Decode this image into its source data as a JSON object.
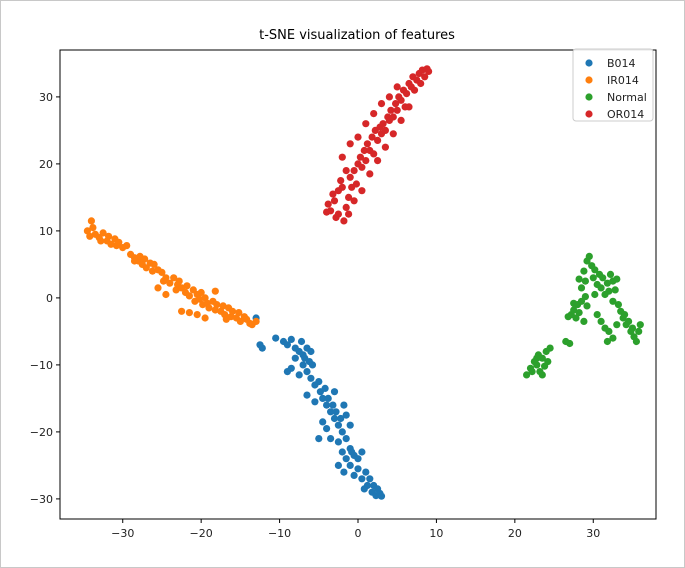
{
  "chart_data": {
    "type": "scatter",
    "title": "t-SNE visualization of features",
    "xlabel": "",
    "ylabel": "",
    "xlim": [
      -38,
      38
    ],
    "ylim": [
      -33,
      37
    ],
    "xticks": [
      -30,
      -20,
      -10,
      0,
      10,
      20,
      30
    ],
    "yticks": [
      -30,
      -20,
      -10,
      0,
      10,
      20,
      30
    ],
    "grid": false,
    "legend_position": "top-right",
    "series": [
      {
        "name": "B014",
        "color": "#1f77b4",
        "points": [
          [
            -13,
            -3
          ],
          [
            -12.5,
            -7
          ],
          [
            -12.2,
            -7.5
          ],
          [
            -10.5,
            -6
          ],
          [
            -9.5,
            -6.5
          ],
          [
            -9,
            -7
          ],
          [
            -8.5,
            -6.2
          ],
          [
            -8,
            -7.5
          ],
          [
            -7.5,
            -8
          ],
          [
            -7.2,
            -6.5
          ],
          [
            -7,
            -8.5
          ],
          [
            -6.8,
            -9
          ],
          [
            -6.5,
            -7.5
          ],
          [
            -6.2,
            -9.5
          ],
          [
            -6,
            -8
          ],
          [
            -5.8,
            -10
          ],
          [
            -8.5,
            -10.5
          ],
          [
            -9,
            -11
          ],
          [
            -7.5,
            -11.5
          ],
          [
            -6.5,
            -11
          ],
          [
            -6,
            -12
          ],
          [
            -5.5,
            -13
          ],
          [
            -5,
            -12.5
          ],
          [
            -4.8,
            -14
          ],
          [
            -4.5,
            -15
          ],
          [
            -4.2,
            -13.5
          ],
          [
            -4,
            -16
          ],
          [
            -3.8,
            -15
          ],
          [
            -3.5,
            -17
          ],
          [
            -6.5,
            -14.5
          ],
          [
            -5.5,
            -15.5
          ],
          [
            -3.2,
            -16
          ],
          [
            -3,
            -18
          ],
          [
            -2.8,
            -17
          ],
          [
            -2.5,
            -19
          ],
          [
            -2.2,
            -18
          ],
          [
            -2,
            -20
          ],
          [
            -1.8,
            -16
          ],
          [
            -1.5,
            -17.5
          ],
          [
            -4.5,
            -18.5
          ],
          [
            -4,
            -19.5
          ],
          [
            -5,
            -21
          ],
          [
            -3.5,
            -21
          ],
          [
            -2.5,
            -21.5
          ],
          [
            -1.5,
            -21
          ],
          [
            -1,
            -19
          ],
          [
            -2,
            -23
          ],
          [
            -1.5,
            -24
          ],
          [
            -1,
            -22.5
          ],
          [
            -0.5,
            -23.5
          ],
          [
            0,
            -24
          ],
          [
            0.5,
            -23
          ],
          [
            -2.5,
            -25
          ],
          [
            -1.8,
            -26
          ],
          [
            -1,
            -25
          ],
          [
            -0.5,
            -26.5
          ],
          [
            0,
            -25.5
          ],
          [
            0.5,
            -27
          ],
          [
            1,
            -26
          ],
          [
            1.2,
            -28
          ],
          [
            1.5,
            -27
          ],
          [
            1.8,
            -29
          ],
          [
            2,
            -28
          ],
          [
            2.3,
            -29.5
          ],
          [
            2.5,
            -28.5
          ],
          [
            2.8,
            -29.2
          ],
          [
            3,
            -29.6
          ],
          [
            0.8,
            -28.5
          ],
          [
            -0.8,
            -23
          ],
          [
            -3,
            -14
          ],
          [
            -8,
            -9
          ],
          [
            -7,
            -10
          ]
        ]
      },
      {
        "name": "IR014",
        "color": "#ff7f0e",
        "points": [
          [
            -34,
            11.5
          ],
          [
            -34.5,
            10
          ],
          [
            -34.2,
            9.2
          ],
          [
            -33.8,
            10.5
          ],
          [
            -33.5,
            9.5
          ],
          [
            -33,
            9
          ],
          [
            -32.8,
            8.5
          ],
          [
            -32.5,
            9.7
          ],
          [
            -32,
            8.5
          ],
          [
            -31.8,
            9.2
          ],
          [
            -31.5,
            8
          ],
          [
            -31,
            8.8
          ],
          [
            -30.8,
            7.8
          ],
          [
            -30.5,
            8.3
          ],
          [
            -30,
            7.5
          ],
          [
            -29.5,
            7.8
          ],
          [
            -29,
            6.5
          ],
          [
            -28.5,
            6
          ],
          [
            -28,
            5.5
          ],
          [
            -27.8,
            6.2
          ],
          [
            -27.5,
            5
          ],
          [
            -27.2,
            5.8
          ],
          [
            -27,
            4.5
          ],
          [
            -26.5,
            5.2
          ],
          [
            -26.2,
            4
          ],
          [
            -26,
            5
          ],
          [
            -25.5,
            4.2
          ],
          [
            -25,
            3.8
          ],
          [
            -24.8,
            2.5
          ],
          [
            -24.5,
            3
          ],
          [
            -24,
            2.2
          ],
          [
            -23.5,
            3
          ],
          [
            -23,
            2
          ],
          [
            -23.2,
            1.2
          ],
          [
            -22.8,
            2.5
          ],
          [
            -22.5,
            1.5
          ],
          [
            -22,
            0.8
          ],
          [
            -21.8,
            1.8
          ],
          [
            -21.5,
            0.3
          ],
          [
            -21,
            1.2
          ],
          [
            -20.8,
            -0.5
          ],
          [
            -20.5,
            0.5
          ],
          [
            -20.2,
            -0.2
          ],
          [
            -20,
            0.8
          ],
          [
            -19.8,
            -1
          ],
          [
            -19.5,
            0
          ],
          [
            -19.2,
            -0.8
          ],
          [
            -19,
            -1.5
          ],
          [
            -18.5,
            -0.5
          ],
          [
            -18.2,
            -1.8
          ],
          [
            -18,
            -1
          ],
          [
            -17.5,
            -2
          ],
          [
            -17.2,
            -1.2
          ],
          [
            -17,
            -2.5
          ],
          [
            -16.5,
            -1.5
          ],
          [
            -16.2,
            -2.8
          ],
          [
            -16,
            -2
          ],
          [
            -15.5,
            -3
          ],
          [
            -15.2,
            -2.2
          ],
          [
            -15,
            -3.5
          ],
          [
            -14.5,
            -2.8
          ],
          [
            -14.2,
            -3.2
          ],
          [
            -13.8,
            -3.8
          ],
          [
            -13.5,
            -4
          ],
          [
            -13,
            -3.5
          ],
          [
            -18.2,
            1
          ],
          [
            -21.5,
            -2.2
          ],
          [
            -22.5,
            -2
          ],
          [
            -20.5,
            -2.5
          ],
          [
            -24.5,
            0.5
          ],
          [
            -25.5,
            1.5
          ],
          [
            -28.5,
            5.5
          ],
          [
            -19.5,
            -3
          ],
          [
            -16.8,
            -3.2
          ]
        ]
      },
      {
        "name": "Normal",
        "color": "#2ca02c",
        "points": [
          [
            21.5,
            -11.5
          ],
          [
            22,
            -10.5
          ],
          [
            22.2,
            -11
          ],
          [
            22.5,
            -9.5
          ],
          [
            22.8,
            -10
          ],
          [
            23,
            -8.5
          ],
          [
            23.2,
            -11
          ],
          [
            23.5,
            -9
          ],
          [
            23.8,
            -10.2
          ],
          [
            24,
            -8
          ],
          [
            24.2,
            -9.5
          ],
          [
            24.5,
            -7.5
          ],
          [
            22.8,
            -9
          ],
          [
            23.5,
            -11.5
          ],
          [
            26.5,
            -6.5
          ],
          [
            27,
            -6.8
          ],
          [
            27.2,
            -2.5
          ],
          [
            27.5,
            -1.8
          ],
          [
            27.8,
            -3
          ],
          [
            28,
            -1
          ],
          [
            28.2,
            -2.2
          ],
          [
            28.5,
            -0.5
          ],
          [
            28.8,
            -3.5
          ],
          [
            29,
            0.2
          ],
          [
            29.2,
            -1.2
          ],
          [
            28.5,
            1.5
          ],
          [
            29,
            2.5
          ],
          [
            28.8,
            4
          ],
          [
            29.2,
            5.5
          ],
          [
            29.5,
            6.2
          ],
          [
            29.8,
            4.8
          ],
          [
            30,
            3
          ],
          [
            30.2,
            4.2
          ],
          [
            30.5,
            2
          ],
          [
            30.8,
            3.5
          ],
          [
            31,
            1.5
          ],
          [
            31.2,
            3
          ],
          [
            31.5,
            0.5
          ],
          [
            31.8,
            2.2
          ],
          [
            32,
            1
          ],
          [
            32.2,
            3.5
          ],
          [
            32.5,
            2.5
          ],
          [
            32.8,
            1.2
          ],
          [
            33,
            2.8
          ],
          [
            32.5,
            -0.5
          ],
          [
            33.2,
            -1
          ],
          [
            33.5,
            -2
          ],
          [
            33.8,
            -3
          ],
          [
            34,
            -2.5
          ],
          [
            34.2,
            -4
          ],
          [
            34.5,
            -3.5
          ],
          [
            34.8,
            -5
          ],
          [
            35,
            -4.5
          ],
          [
            35.2,
            -5.8
          ],
          [
            35.5,
            -6.5
          ],
          [
            35.8,
            -5
          ],
          [
            36,
            -4
          ],
          [
            31,
            -3.5
          ],
          [
            31.5,
            -4.5
          ],
          [
            32,
            -5
          ],
          [
            32.5,
            -6
          ],
          [
            33,
            -4
          ],
          [
            31.8,
            -6.5
          ],
          [
            30.5,
            -2.5
          ],
          [
            27.5,
            -0.8
          ],
          [
            28.2,
            2.8
          ],
          [
            30.2,
            0.5
          ],
          [
            26.8,
            -2.8
          ]
        ]
      },
      {
        "name": "OR014",
        "color": "#d62728",
        "points": [
          [
            -3.8,
            14
          ],
          [
            -3.5,
            13
          ],
          [
            -3.2,
            15.5
          ],
          [
            -3,
            14.5
          ],
          [
            -2.8,
            12
          ],
          [
            -2.5,
            16
          ],
          [
            -2.2,
            17.5
          ],
          [
            -2,
            16.5
          ],
          [
            -1.8,
            11.5
          ],
          [
            -1.5,
            13.5
          ],
          [
            -1.2,
            15
          ],
          [
            -1,
            18
          ],
          [
            -0.8,
            16.5
          ],
          [
            -0.5,
            19
          ],
          [
            -0.2,
            17
          ],
          [
            0,
            20
          ],
          [
            0.3,
            21
          ],
          [
            0.5,
            19.5
          ],
          [
            0.8,
            22
          ],
          [
            1,
            20.5
          ],
          [
            1.2,
            23
          ],
          [
            1.5,
            22
          ],
          [
            1.8,
            24
          ],
          [
            2,
            21.5
          ],
          [
            2.2,
            25
          ],
          [
            2.5,
            23.5
          ],
          [
            2.8,
            25.5
          ],
          [
            3,
            24.5
          ],
          [
            3.2,
            26
          ],
          [
            3.5,
            25
          ],
          [
            3.8,
            27
          ],
          [
            4,
            26.5
          ],
          [
            4.2,
            28
          ],
          [
            4.5,
            27
          ],
          [
            4.8,
            29
          ],
          [
            5,
            28
          ],
          [
            5.2,
            30
          ],
          [
            5.5,
            29.5
          ],
          [
            5.8,
            31
          ],
          [
            6,
            28.5
          ],
          [
            6.2,
            30.5
          ],
          [
            6.5,
            32
          ],
          [
            6.8,
            31.5
          ],
          [
            7,
            33
          ],
          [
            7.2,
            31
          ],
          [
            7.5,
            32.5
          ],
          [
            7.8,
            33.5
          ],
          [
            8,
            32
          ],
          [
            8.2,
            34
          ],
          [
            8.5,
            33
          ],
          [
            8.8,
            34.2
          ],
          [
            9,
            33.8
          ],
          [
            -1.5,
            19
          ],
          [
            -2,
            21
          ],
          [
            -1,
            23
          ],
          [
            0,
            24
          ],
          [
            1,
            26
          ],
          [
            2,
            27.5
          ],
          [
            3,
            29
          ],
          [
            4,
            30
          ],
          [
            5,
            31.5
          ],
          [
            -2.5,
            12.5
          ],
          [
            -1.2,
            12.5
          ],
          [
            -0.5,
            14.5
          ],
          [
            0.5,
            16
          ],
          [
            1.5,
            18.5
          ],
          [
            2.5,
            20.5
          ],
          [
            3.5,
            22.5
          ],
          [
            4.5,
            24.5
          ],
          [
            5.5,
            26.5
          ],
          [
            6.5,
            28.5
          ],
          [
            -4,
            12.8
          ]
        ]
      }
    ]
  }
}
